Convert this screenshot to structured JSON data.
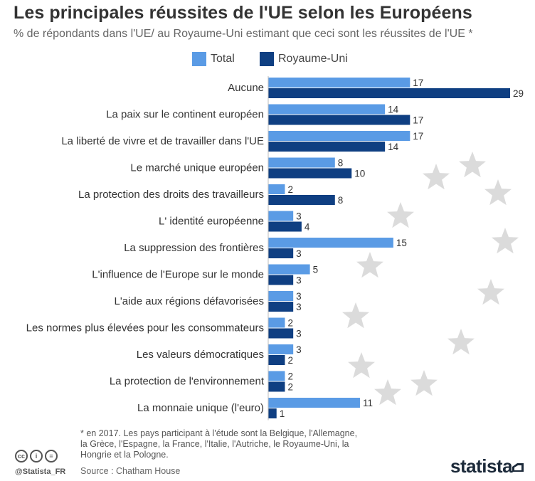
{
  "title": "Les principales réussites de l'UE selon les Européens",
  "subtitle": "% de répondants dans l'UE/ au Royaume-Uni estimant que ceci sont les réussites de l'UE *",
  "colors": {
    "total": "#5a9be5",
    "uk": "#0f3f82",
    "star": "#cfcfcf"
  },
  "chart_data": {
    "type": "bar",
    "orientation": "horizontal",
    "title": "Les principales réussites de l'UE selon les Européens",
    "xlabel": "",
    "ylabel": "",
    "xlim": [
      0,
      29
    ],
    "grid": false,
    "legend_position": "top",
    "categories": [
      "Aucune",
      "La paix sur le continent européen",
      "La liberté de vivre et de travailler dans l'UE",
      "Le marché unique européen",
      "La protection des droits des travailleurs",
      "L' identité européenne",
      "La suppression des frontières",
      "L'influence de l'Europe sur le monde",
      "L'aide aux régions défavorisées",
      "Les normes plus élevées pour les consommateurs",
      "Les valeurs démocratiques",
      "La protection de l'environnement",
      "La monnaie unique (l'euro)"
    ],
    "series": [
      {
        "name": "Total",
        "values": [
          17,
          14,
          17,
          8,
          2,
          3,
          15,
          5,
          3,
          2,
          3,
          2,
          11
        ]
      },
      {
        "name": "Royaume-Uni",
        "values": [
          29,
          17,
          14,
          10,
          8,
          4,
          3,
          3,
          3,
          3,
          2,
          2,
          1
        ]
      }
    ]
  },
  "footer": {
    "note": "* en 2017. Les pays participant à l'étude sont la Belgique, l'Allemagne, la Grèce, l'Espagne, la France, l'Italie, l'Autriche, le Royaume-Uni, la Hongrie et la Pologne.",
    "source": "Source : Chatham House",
    "handle": "@Statista_FR",
    "brand": "statista",
    "license_icons": [
      "cc",
      "i",
      "="
    ]
  }
}
